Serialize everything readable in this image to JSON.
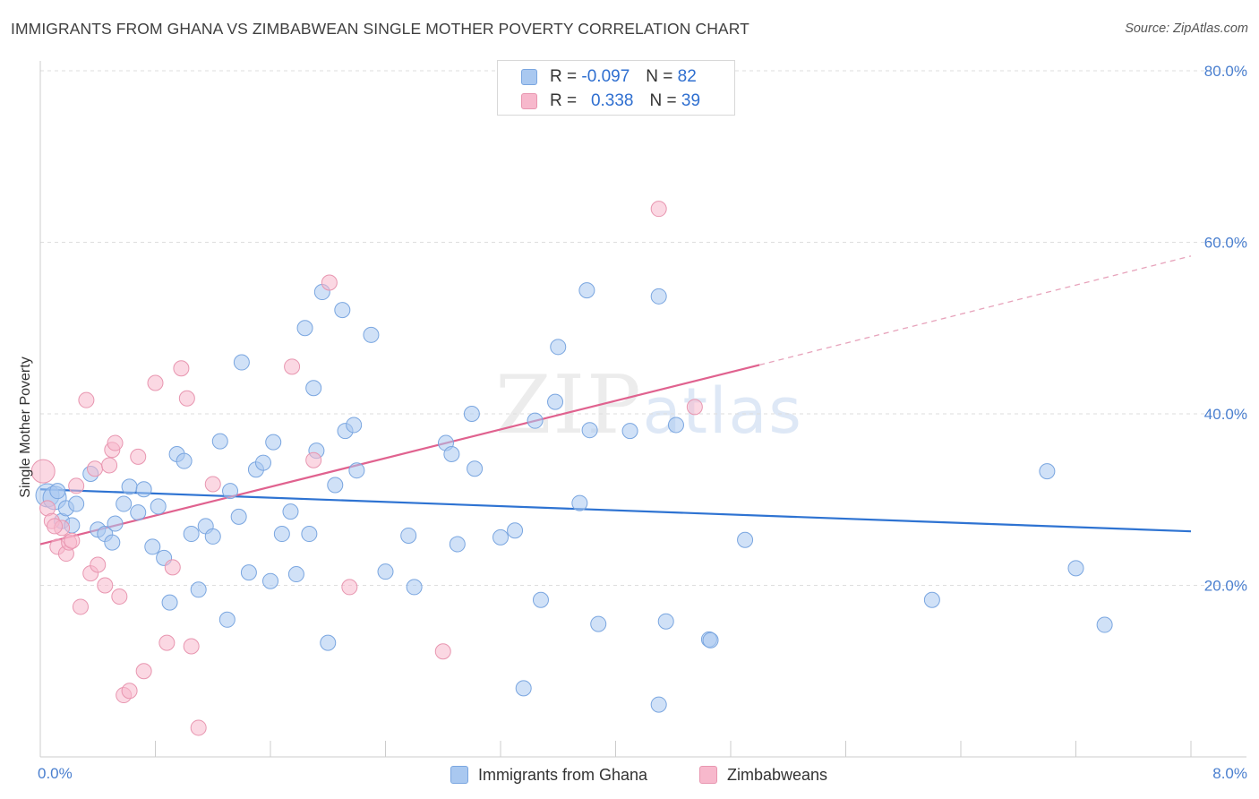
{
  "title": "IMMIGRANTS FROM GHANA VS ZIMBABWEAN SINGLE MOTHER POVERTY CORRELATION CHART",
  "source": "Source: ZipAtlas.com",
  "watermark": {
    "zip": "ZIP",
    "atlas": "atlas"
  },
  "legend": {
    "rows": [
      {
        "r_label": "R =",
        "r_value": "-0.097",
        "n_label": "N =",
        "n_value": "82",
        "color": "#a9c8f0"
      },
      {
        "r_label": "R =",
        "r_value": "0.338",
        "n_label": "N =",
        "n_value": "39",
        "color": "#f7b8cc"
      }
    ]
  },
  "bottom_legend": [
    {
      "label": "Immigrants from Ghana",
      "color": "#a9c8f0"
    },
    {
      "label": "Zimbabweans",
      "color": "#f7b8cc"
    }
  ],
  "chart_data": {
    "type": "scatter",
    "title": "IMMIGRANTS FROM GHANA VS ZIMBABWEAN SINGLE MOTHER POVERTY CORRELATION CHART",
    "xlabel": "",
    "ylabel": "Single Mother Poverty",
    "xlim": [
      0,
      8
    ],
    "ylim": [
      0,
      80
    ],
    "x_tick_labels": [
      {
        "x": 0,
        "label": "0.0%"
      },
      {
        "x": 8,
        "label": "8.0%"
      }
    ],
    "y_tick_labels": [
      {
        "y": 20,
        "label": "20.0%"
      },
      {
        "y": 40,
        "label": "40.0%"
      },
      {
        "y": 60,
        "label": "60.0%"
      },
      {
        "y": 80,
        "label": "80.0%"
      }
    ],
    "grid": true,
    "series": [
      {
        "name": "Immigrants from Ghana",
        "color": "#a9c8f0",
        "stroke": "#7aa6e0",
        "points": [
          [
            0.05,
            30.5
          ],
          [
            0.1,
            30.2
          ],
          [
            0.12,
            31
          ],
          [
            0.15,
            27.5
          ],
          [
            0.18,
            29
          ],
          [
            0.22,
            27
          ],
          [
            0.25,
            29.5
          ],
          [
            0.35,
            33
          ],
          [
            0.4,
            26.5
          ],
          [
            0.45,
            26
          ],
          [
            0.5,
            25
          ],
          [
            0.52,
            27.2
          ],
          [
            0.58,
            29.5
          ],
          [
            0.62,
            31.5
          ],
          [
            0.68,
            28.5
          ],
          [
            0.72,
            31.2
          ],
          [
            0.78,
            24.5
          ],
          [
            0.82,
            29.2
          ],
          [
            0.86,
            23.2
          ],
          [
            0.9,
            18
          ],
          [
            0.95,
            35.3
          ],
          [
            1.0,
            34.5
          ],
          [
            1.05,
            26
          ],
          [
            1.1,
            19.5
          ],
          [
            1.15,
            26.9
          ],
          [
            1.2,
            25.7
          ],
          [
            1.25,
            36.8
          ],
          [
            1.3,
            16
          ],
          [
            1.32,
            31
          ],
          [
            1.38,
            28
          ],
          [
            1.4,
            46
          ],
          [
            1.45,
            21.5
          ],
          [
            1.5,
            33.5
          ],
          [
            1.55,
            34.3
          ],
          [
            1.6,
            20.5
          ],
          [
            1.62,
            36.7
          ],
          [
            1.68,
            26
          ],
          [
            1.74,
            28.6
          ],
          [
            1.78,
            21.3
          ],
          [
            1.84,
            50
          ],
          [
            1.87,
            26
          ],
          [
            1.9,
            43
          ],
          [
            1.92,
            35.7
          ],
          [
            1.96,
            54.2
          ],
          [
            2.0,
            13.3
          ],
          [
            2.05,
            31.7
          ],
          [
            2.1,
            52.1
          ],
          [
            2.12,
            38
          ],
          [
            2.18,
            38.7
          ],
          [
            2.2,
            33.4
          ],
          [
            2.3,
            49.2
          ],
          [
            2.4,
            21.6
          ],
          [
            2.56,
            25.8
          ],
          [
            2.6,
            19.8
          ],
          [
            2.82,
            36.6
          ],
          [
            2.86,
            35.3
          ],
          [
            2.9,
            24.8
          ],
          [
            3.0,
            40
          ],
          [
            3.02,
            33.6
          ],
          [
            3.2,
            25.6
          ],
          [
            3.3,
            26.4
          ],
          [
            3.36,
            8
          ],
          [
            3.44,
            39.2
          ],
          [
            3.48,
            18.3
          ],
          [
            3.58,
            41.4
          ],
          [
            3.6,
            47.8
          ],
          [
            3.75,
            29.6
          ],
          [
            3.8,
            54.4
          ],
          [
            3.82,
            38.1
          ],
          [
            3.88,
            15.5
          ],
          [
            4.1,
            38
          ],
          [
            4.3,
            53.7
          ],
          [
            4.35,
            15.8
          ],
          [
            4.42,
            38.7
          ],
          [
            4.3,
            6.1
          ],
          [
            4.65,
            13.7
          ],
          [
            4.66,
            13.6
          ],
          [
            4.9,
            25.3
          ],
          [
            6.2,
            18.3
          ],
          [
            7.0,
            33.3
          ],
          [
            7.2,
            22
          ],
          [
            7.4,
            15.4
          ]
        ],
        "trend": {
          "x": [
            0,
            8
          ],
          "y": [
            31.2,
            26.3
          ]
        }
      },
      {
        "name": "Zimbabweans",
        "color": "#f7b8cc",
        "stroke": "#e896b0",
        "points": [
          [
            0.02,
            33.3
          ],
          [
            0.05,
            29
          ],
          [
            0.08,
            27.5
          ],
          [
            0.12,
            24.5
          ],
          [
            0.15,
            26.7
          ],
          [
            0.18,
            23.7
          ],
          [
            0.2,
            25
          ],
          [
            0.25,
            31.6
          ],
          [
            0.28,
            17.5
          ],
          [
            0.32,
            41.6
          ],
          [
            0.35,
            21.4
          ],
          [
            0.38,
            33.6
          ],
          [
            0.4,
            22.4
          ],
          [
            0.45,
            20
          ],
          [
            0.48,
            34
          ],
          [
            0.5,
            35.8
          ],
          [
            0.52,
            36.6
          ],
          [
            0.55,
            18.7
          ],
          [
            0.58,
            7.2
          ],
          [
            0.62,
            7.7
          ],
          [
            0.68,
            35
          ],
          [
            0.72,
            10
          ],
          [
            0.8,
            43.6
          ],
          [
            0.88,
            13.3
          ],
          [
            0.92,
            22.1
          ],
          [
            0.98,
            45.3
          ],
          [
            1.02,
            41.8
          ],
          [
            1.05,
            12.9
          ],
          [
            1.1,
            3.4
          ],
          [
            1.2,
            31.8
          ],
          [
            1.75,
            45.5
          ],
          [
            1.9,
            34.6
          ],
          [
            2.01,
            55.3
          ],
          [
            2.15,
            19.8
          ],
          [
            2.8,
            12.3
          ],
          [
            4.3,
            63.9
          ],
          [
            4.55,
            40.8
          ],
          [
            0.1,
            26.9
          ],
          [
            0.22,
            25.2
          ]
        ],
        "trend": {
          "x": [
            0,
            5
          ],
          "y": [
            24.8,
            45.7
          ]
        },
        "trend_extension": {
          "x": [
            5,
            8
          ],
          "y": [
            45.7,
            58.4
          ]
        }
      }
    ]
  }
}
